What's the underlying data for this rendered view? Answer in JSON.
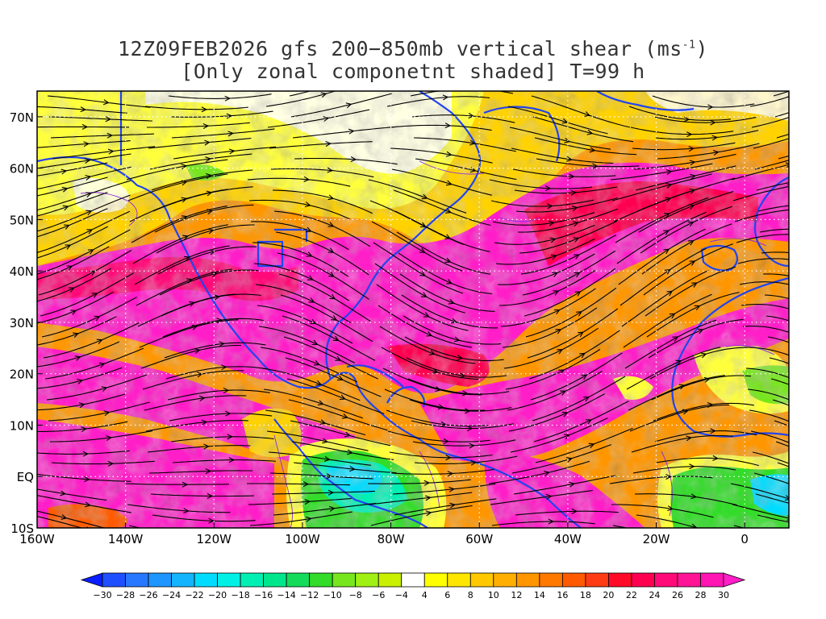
{
  "title": {
    "line1_main": "12Z09FEB2026 gfs 200−850mb vertical shear (ms",
    "line1_sup": "-1",
    "line1_end": ")",
    "line2": "[Only zonal componetnt shaded] T=99 h"
  },
  "map": {
    "lon_range": [
      -160,
      10
    ],
    "lat_range": [
      -10,
      75
    ],
    "x_ticks": [
      {
        "lon": -160,
        "label": "160W"
      },
      {
        "lon": -140,
        "label": "140W"
      },
      {
        "lon": -120,
        "label": "120W"
      },
      {
        "lon": -100,
        "label": "100W"
      },
      {
        "lon": -80,
        "label": "80W"
      },
      {
        "lon": -60,
        "label": "60W"
      },
      {
        "lon": -40,
        "label": "40W"
      },
      {
        "lon": -20,
        "label": "20W"
      },
      {
        "lon": 0,
        "label": "0"
      }
    ],
    "y_ticks": [
      {
        "lat": 70,
        "label": "70N"
      },
      {
        "lat": 60,
        "label": "60N"
      },
      {
        "lat": 50,
        "label": "50N"
      },
      {
        "lat": 40,
        "label": "40N"
      },
      {
        "lat": 30,
        "label": "30N"
      },
      {
        "lat": 20,
        "label": "20N"
      },
      {
        "lat": 10,
        "label": "10N"
      },
      {
        "lat": 0,
        "label": "EQ"
      },
      {
        "lat": -10,
        "label": "10S"
      }
    ]
  },
  "colorbar": {
    "levels": [
      "-30",
      "-28",
      "-26",
      "-24",
      "-22",
      "-20",
      "-18",
      "-16",
      "-14",
      "-12",
      "-10",
      "-8",
      "-6",
      "-4",
      "4",
      "6",
      "8",
      "10",
      "12",
      "14",
      "16",
      "18",
      "20",
      "22",
      "24",
      "26",
      "28",
      "30"
    ],
    "colors": [
      "#0a1eff",
      "#1e50ff",
      "#2878ff",
      "#1e96ff",
      "#14b4ff",
      "#00dcff",
      "#00f0e6",
      "#00f0b4",
      "#00e68c",
      "#14dc5a",
      "#32dc28",
      "#78e61e",
      "#a0f014",
      "#c8f000",
      "#ffffff",
      "#ffff00",
      "#ffe600",
      "#ffc800",
      "#ffaf00",
      "#ff9600",
      "#ff7800",
      "#ff5a00",
      "#ff3c14",
      "#ff0a28",
      "#ff0050",
      "#ff0a78",
      "#ff1496",
      "#ff14b4",
      "#ff1ec8"
    ]
  }
}
